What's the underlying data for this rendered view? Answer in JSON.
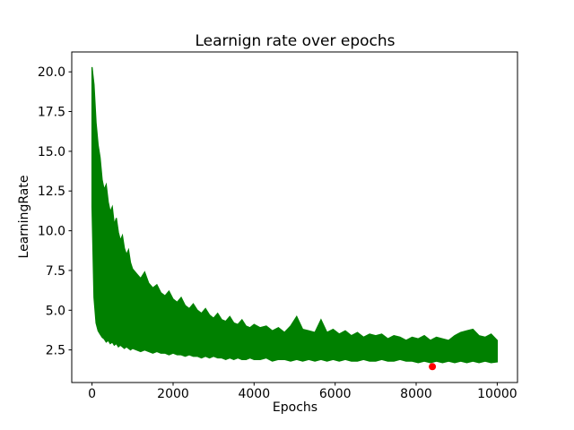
{
  "chart_data": {
    "type": "line",
    "title": "Learnign rate over epochs",
    "xlabel": "Epochs",
    "ylabel": "LearningRate",
    "xlim": [
      -500,
      10500
    ],
    "ylim": [
      0.45,
      21.25
    ],
    "xticks": [
      0,
      2000,
      4000,
      6000,
      8000,
      10000
    ],
    "yticks": [
      2.5,
      5.0,
      7.5,
      10.0,
      12.5,
      15.0,
      17.5,
      20.0
    ],
    "grid": false,
    "legend": false,
    "axes_color": "#000000",
    "background": "#ffffff",
    "series": [
      {
        "name": "learning-rate",
        "render": "noisy-line-envelope",
        "color": "#008000",
        "note": "dense noisy line; envelope rows are [epoch, min, max] of the learning-rate values",
        "envelope": [
          [
            0,
            11.5,
            20.3
          ],
          [
            50,
            5.8,
            19.2
          ],
          [
            100,
            4.2,
            16.8
          ],
          [
            150,
            3.7,
            15.4
          ],
          [
            200,
            3.5,
            14.6
          ],
          [
            250,
            3.3,
            13.2
          ],
          [
            300,
            3.2,
            12.6
          ],
          [
            350,
            3.0,
            12.9
          ],
          [
            400,
            3.1,
            11.8
          ],
          [
            450,
            2.9,
            11.2
          ],
          [
            500,
            3.0,
            11.5
          ],
          [
            550,
            2.8,
            10.4
          ],
          [
            600,
            2.9,
            10.8
          ],
          [
            650,
            2.7,
            9.9
          ],
          [
            700,
            2.8,
            9.4
          ],
          [
            750,
            2.7,
            9.7
          ],
          [
            800,
            2.6,
            8.9
          ],
          [
            850,
            2.7,
            8.5
          ],
          [
            900,
            2.6,
            8.8
          ],
          [
            950,
            2.5,
            8.0
          ],
          [
            1000,
            2.6,
            7.6
          ],
          [
            1100,
            2.5,
            7.3
          ],
          [
            1200,
            2.4,
            7.0
          ],
          [
            1300,
            2.5,
            7.4
          ],
          [
            1400,
            2.4,
            6.7
          ],
          [
            1500,
            2.3,
            6.4
          ],
          [
            1600,
            2.4,
            6.6
          ],
          [
            1700,
            2.3,
            6.1
          ],
          [
            1800,
            2.3,
            5.9
          ],
          [
            1900,
            2.2,
            6.2
          ],
          [
            2000,
            2.3,
            5.7
          ],
          [
            2100,
            2.2,
            5.5
          ],
          [
            2200,
            2.2,
            5.8
          ],
          [
            2300,
            2.1,
            5.3
          ],
          [
            2400,
            2.2,
            5.1
          ],
          [
            2500,
            2.1,
            5.4
          ],
          [
            2600,
            2.1,
            5.0
          ],
          [
            2700,
            2.0,
            4.8
          ],
          [
            2800,
            2.1,
            5.1
          ],
          [
            2900,
            2.0,
            4.7
          ],
          [
            3000,
            2.1,
            4.5
          ],
          [
            3100,
            2.0,
            4.8
          ],
          [
            3200,
            2.0,
            4.4
          ],
          [
            3300,
            1.9,
            4.3
          ],
          [
            3400,
            2.0,
            4.6
          ],
          [
            3500,
            1.9,
            4.2
          ],
          [
            3600,
            2.0,
            4.1
          ],
          [
            3700,
            1.9,
            4.4
          ],
          [
            3800,
            1.9,
            4.0
          ],
          [
            3900,
            2.0,
            3.9
          ],
          [
            4000,
            1.9,
            4.1
          ],
          [
            4150,
            1.9,
            3.9
          ],
          [
            4300,
            2.0,
            4.0
          ],
          [
            4450,
            1.8,
            3.7
          ],
          [
            4600,
            1.9,
            3.9
          ],
          [
            4750,
            1.9,
            3.6
          ],
          [
            4900,
            1.8,
            4.0
          ],
          [
            5050,
            1.9,
            4.6
          ],
          [
            5200,
            1.8,
            3.8
          ],
          [
            5350,
            1.9,
            3.7
          ],
          [
            5500,
            1.8,
            3.6
          ],
          [
            5650,
            1.9,
            4.4
          ],
          [
            5800,
            1.8,
            3.6
          ],
          [
            5950,
            1.9,
            3.8
          ],
          [
            6100,
            1.8,
            3.5
          ],
          [
            6250,
            1.9,
            3.7
          ],
          [
            6400,
            1.8,
            3.4
          ],
          [
            6550,
            1.8,
            3.6
          ],
          [
            6700,
            1.9,
            3.3
          ],
          [
            6850,
            1.8,
            3.5
          ],
          [
            7000,
            1.8,
            3.4
          ],
          [
            7150,
            1.9,
            3.5
          ],
          [
            7300,
            1.8,
            3.2
          ],
          [
            7450,
            1.8,
            3.4
          ],
          [
            7600,
            1.9,
            3.3
          ],
          [
            7750,
            1.8,
            3.1
          ],
          [
            7900,
            1.8,
            3.3
          ],
          [
            8050,
            1.7,
            3.2
          ],
          [
            8200,
            1.8,
            3.4
          ],
          [
            8350,
            1.7,
            3.1
          ],
          [
            8500,
            1.8,
            3.3
          ],
          [
            8650,
            1.7,
            3.2
          ],
          [
            8800,
            1.8,
            3.1
          ],
          [
            8950,
            1.7,
            3.4
          ],
          [
            9100,
            1.8,
            3.6
          ],
          [
            9250,
            1.7,
            3.7
          ],
          [
            9400,
            1.8,
            3.8
          ],
          [
            9550,
            1.7,
            3.4
          ],
          [
            9700,
            1.8,
            3.3
          ],
          [
            9850,
            1.7,
            3.5
          ],
          [
            10000,
            1.75,
            3.1
          ]
        ]
      },
      {
        "name": "minimum-point",
        "render": "scatter",
        "color": "#ff0000",
        "points": [
          [
            8400,
            1.45
          ]
        ],
        "marker_radius_px": 4
      }
    ]
  }
}
